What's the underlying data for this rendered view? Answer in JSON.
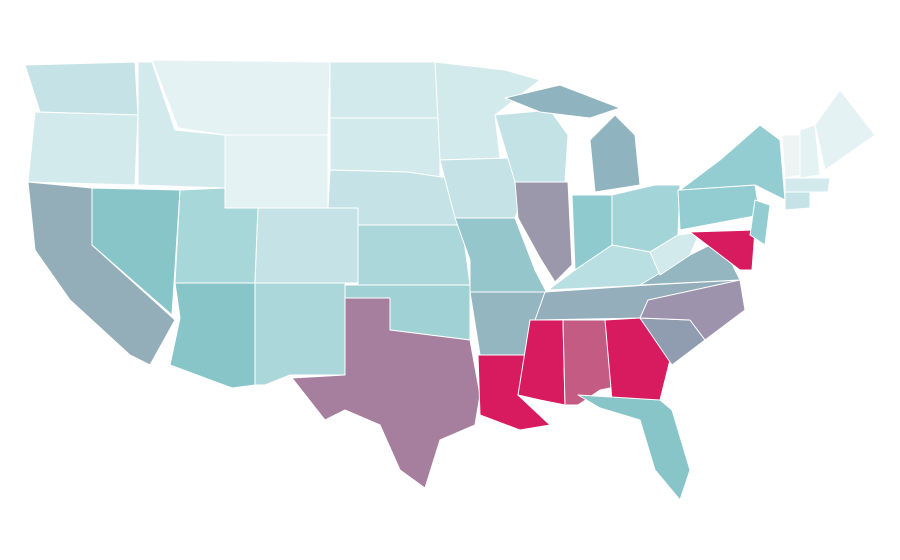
{
  "map": {
    "regions": [
      {
        "color": "#c5e3e6"
      },
      {
        "color": "#d3eaec"
      },
      {
        "color": "#93adb9"
      },
      {
        "color": "#88c5c9"
      },
      {
        "color": "#d3eaec"
      },
      {
        "color": "#e4f2f4"
      },
      {
        "color": "#e4f2f4"
      },
      {
        "color": "#a8d7da"
      },
      {
        "color": "#88c5c9"
      },
      {
        "color": "#c5e3e6"
      },
      {
        "color": "#acd7da"
      },
      {
        "color": "#d3eaec"
      },
      {
        "color": "#d3eaec"
      },
      {
        "color": "#c5e3e6"
      },
      {
        "color": "#acd7da"
      },
      {
        "color": "#9fd1d5"
      },
      {
        "color": "#a67e9e"
      },
      {
        "color": "#d3eaec"
      },
      {
        "color": "#c5e3e6"
      },
      {
        "color": "#94c6cb"
      },
      {
        "color": "#94b6c0"
      },
      {
        "color": "#d81a5f"
      },
      {
        "color": "#c2e2e5"
      },
      {
        "color": "#9c98ab"
      },
      {
        "color": "#8fb3bf"
      },
      {
        "color": "#8fb3bf"
      },
      {
        "color": "#8fcacf"
      },
      {
        "color": "#a3d4d7"
      },
      {
        "color": "#b9dfe2"
      },
      {
        "color": "#94aebb"
      },
      {
        "color": "#d81a5f"
      },
      {
        "color": "#c35b83"
      },
      {
        "color": "#d81a5f"
      },
      {
        "color": "#88c5c9"
      },
      {
        "color": "#909db0"
      },
      {
        "color": "#9e93ac"
      },
      {
        "color": "#94b6c0"
      },
      {
        "color": "#d3eaec"
      },
      {
        "color": "#94cdd1"
      },
      {
        "color": "#94cdd1"
      },
      {
        "color": "#d81a5f"
      },
      {
        "color": "#94cdd1"
      },
      {
        "color": "#eef3f4"
      },
      {
        "color": "#e4f2f4"
      },
      {
        "color": "#e4f2f4"
      },
      {
        "color": "#d3eaec"
      },
      {
        "color": "#c5e3e6"
      }
    ]
  }
}
